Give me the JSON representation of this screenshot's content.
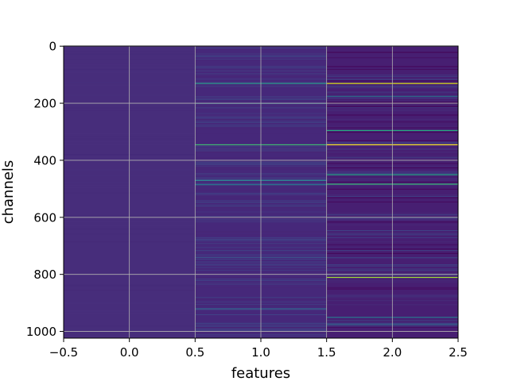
{
  "chart_data": {
    "type": "heatmap",
    "title": "",
    "xlabel": "features",
    "ylabel": "channels",
    "xlim": [
      -0.5,
      2.5
    ],
    "ylim": [
      1023.5,
      -0.5
    ],
    "y_inverted": true,
    "grid": true,
    "x_ticks": [
      -0.5,
      0.0,
      0.5,
      1.0,
      1.5,
      2.0,
      2.5
    ],
    "x_tick_labels": [
      "−0.5",
      "0.0",
      "0.5",
      "1.0",
      "1.5",
      "2.0",
      "2.5"
    ],
    "y_ticks": [
      0,
      200,
      400,
      600,
      800,
      1000
    ],
    "y_tick_labels": [
      "0",
      "200",
      "400",
      "600",
      "800",
      "1000"
    ],
    "n_rows": 1024,
    "n_cols": 3,
    "colormap": "viridis",
    "base_colors": [
      "#472d7b",
      "#46287a",
      "#471f72"
    ],
    "highlights": [
      {
        "col": 1,
        "row": 130,
        "color": "#2c9c8c"
      },
      {
        "col": 1,
        "row": 200,
        "color": "#31688e"
      },
      {
        "col": 1,
        "row": 345,
        "color": "#3fbc73"
      },
      {
        "col": 1,
        "row": 470,
        "color": "#2c8f94"
      },
      {
        "col": 1,
        "row": 485,
        "color": "#2a788e"
      },
      {
        "col": 1,
        "row": 740,
        "color": "#3b528b"
      },
      {
        "col": 1,
        "row": 920,
        "color": "#31688e"
      },
      {
        "col": 2,
        "row": 130,
        "color": "#dde318"
      },
      {
        "col": 2,
        "row": 175,
        "color": "#2c728e"
      },
      {
        "col": 2,
        "row": 295,
        "color": "#27ad81"
      },
      {
        "col": 2,
        "row": 345,
        "color": "#fde725"
      },
      {
        "col": 2,
        "row": 450,
        "color": "#22a785"
      },
      {
        "col": 2,
        "row": 483,
        "color": "#3aba76"
      },
      {
        "col": 2,
        "row": 810,
        "color": "#a0da39"
      },
      {
        "col": 2,
        "row": 950,
        "color": "#2a788e"
      },
      {
        "col": 2,
        "row": 975,
        "color": "#31688e"
      }
    ]
  }
}
